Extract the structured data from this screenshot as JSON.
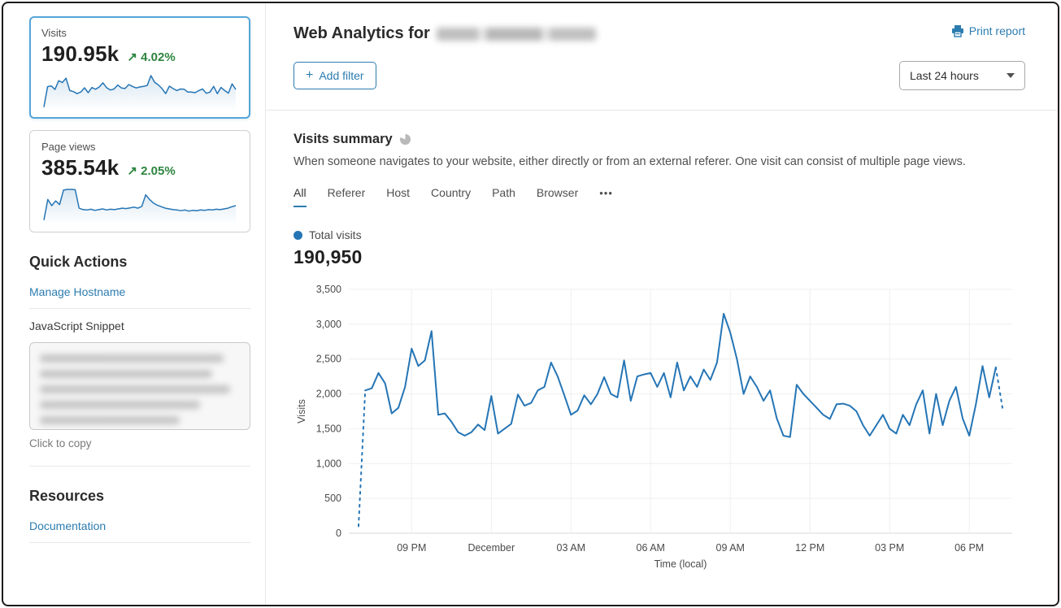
{
  "sidebar": {
    "cards": [
      {
        "label": "Visits",
        "value": "190.95k",
        "delta_arrow": "↗",
        "delta": "4.02%",
        "selected": true,
        "sparkline": [
          100,
          2080,
          2150,
          1800,
          2650,
          2480,
          2900,
          1700,
          1600,
          1400,
          1560,
          1970,
          1500,
          1990,
          1830,
          2050,
          2450,
          1980,
          1760,
          1850,
          2240,
          1950,
          1900,
          2280,
          2100,
          1950,
          2050,
          2100,
          2200,
          3150,
          2500,
          2250,
          1900,
          1400,
          2130,
          1900,
          1700,
          1850,
          1830,
          1550,
          1550,
          1500,
          1700,
          1850,
          1430,
          1550,
          2100,
          1400,
          2000,
          1700,
          1450,
          2350,
          1800
        ]
      },
      {
        "label": "Page views",
        "value": "385.54k",
        "delta_arrow": "↗",
        "delta": "2.05%",
        "selected": false,
        "sparkline": [
          5,
          62,
          45,
          58,
          48,
          88,
          90,
          90,
          89,
          38,
          34,
          33,
          35,
          32,
          34,
          36,
          33,
          35,
          34,
          36,
          38,
          37,
          39,
          41,
          38,
          43,
          75,
          62,
          52,
          46,
          42,
          38,
          36,
          34,
          33,
          31,
          33,
          30,
          32,
          31,
          33,
          32,
          34,
          33,
          35,
          34,
          36,
          38,
          42,
          45
        ]
      }
    ],
    "quick_actions": {
      "title": "Quick Actions",
      "manage_hostname_label": "Manage Hostname",
      "snippet_label": "JavaScript Snippet",
      "snippet_redacted": true,
      "copy_hint": "Click to copy"
    },
    "resources": {
      "title": "Resources",
      "documentation_label": "Documentation"
    }
  },
  "header": {
    "title_prefix": "Web Analytics for",
    "domain_redacted": true,
    "print_label": "Print report"
  },
  "toolbar": {
    "add_filter_plus": "+",
    "add_filter_label": "Add filter",
    "date_range": "Last 24 hours"
  },
  "summary": {
    "title": "Visits summary",
    "description": "When someone navigates to your website, either directly or from an external referer. One visit can consist of multiple page views.",
    "tabs": [
      {
        "label": "All",
        "active": true
      },
      {
        "label": "Referer",
        "active": false
      },
      {
        "label": "Host",
        "active": false
      },
      {
        "label": "Country",
        "active": false
      },
      {
        "label": "Path",
        "active": false
      },
      {
        "label": "Browser",
        "active": false
      },
      {
        "label": "•••",
        "active": false,
        "more": true
      }
    ],
    "legend_label": "Total visits",
    "total": "190,950"
  },
  "chart_data": {
    "type": "line",
    "title": "Visits summary",
    "xlabel": "Time (local)",
    "ylabel": "Visits",
    "ylim": [
      0,
      3500
    ],
    "y_tick_step": 500,
    "grid": true,
    "legend_position": "top-left",
    "line_color": "#2575b5",
    "x_ticks": [
      {
        "index": 8,
        "label": "09 PM"
      },
      {
        "index": 20,
        "label": "December"
      },
      {
        "index": 32,
        "label": "03 AM"
      },
      {
        "index": 44,
        "label": "06 AM"
      },
      {
        "index": 56,
        "label": "09 AM"
      },
      {
        "index": 68,
        "label": "12 PM"
      },
      {
        "index": 80,
        "label": "03 PM"
      },
      {
        "index": 92,
        "label": "06 PM"
      }
    ],
    "dashed_segments": [
      [
        0,
        1
      ],
      [
        96,
        97
      ]
    ],
    "series": [
      {
        "name": "Total visits",
        "values": [
          100,
          2050,
          2080,
          2300,
          2150,
          1720,
          1800,
          2100,
          2650,
          2400,
          2480,
          2900,
          1700,
          1720,
          1600,
          1450,
          1400,
          1450,
          1560,
          1480,
          1970,
          1430,
          1500,
          1570,
          1990,
          1830,
          1870,
          2050,
          2100,
          2450,
          2250,
          1980,
          1700,
          1760,
          1980,
          1850,
          2000,
          2240,
          2000,
          1950,
          2480,
          1900,
          2250,
          2280,
          2300,
          2100,
          2300,
          1950,
          2450,
          2050,
          2250,
          2100,
          2350,
          2200,
          2450,
          3150,
          2880,
          2500,
          2000,
          2250,
          2100,
          1900,
          2050,
          1650,
          1400,
          1380,
          2130,
          2000,
          1900,
          1800,
          1700,
          1640,
          1850,
          1860,
          1830,
          1750,
          1550,
          1400,
          1550,
          1700,
          1500,
          1430,
          1700,
          1550,
          1850,
          2050,
          1430,
          2000,
          1550,
          1900,
          2100,
          1650,
          1400,
          1850,
          2400,
          1950,
          2380,
          1800
        ]
      }
    ]
  },
  "colors": {
    "link_blue": "#2c7cb0",
    "chart_blue": "#2575b5",
    "delta_green": "#2e8540",
    "selected_card_border": "#56a5d8"
  }
}
